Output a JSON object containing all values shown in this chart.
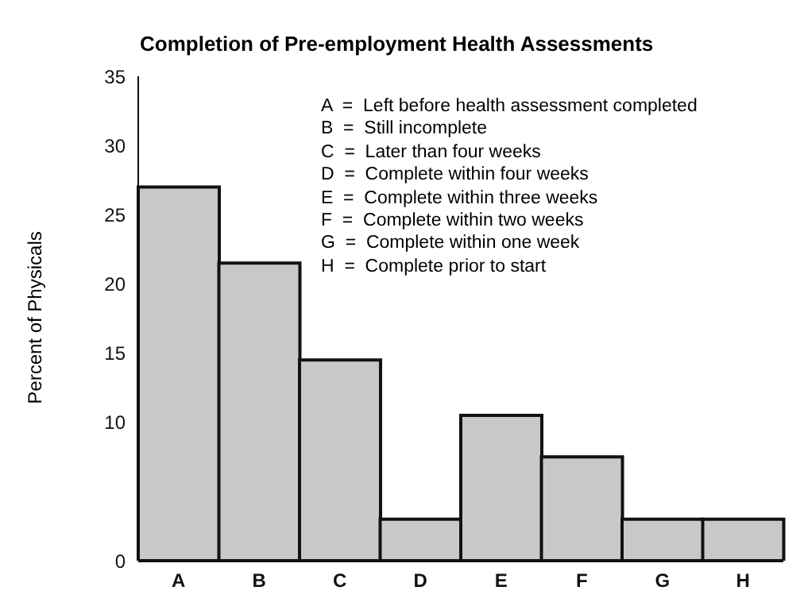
{
  "chart_data": {
    "type": "bar",
    "title": "Completion of Pre-employment Health Assessments",
    "ylabel": "Percent of Physicals",
    "categories": [
      "A",
      "B",
      "C",
      "D",
      "E",
      "F",
      "G",
      "H"
    ],
    "values": [
      27,
      21.5,
      14.5,
      3,
      10.5,
      7.5,
      3,
      3
    ],
    "color": "#c8c8c8",
    "ylim": [
      0,
      35
    ],
    "yticks": [
      0,
      10,
      15,
      20,
      25,
      30,
      35
    ],
    "grid": false,
    "annotations": [
      "A  =  Left before health assessment completed",
      "B  =  Still incomplete",
      "C  =  Later than four weeks",
      "D  =  Complete within four weeks",
      "E  =  Complete within three weeks",
      "F  =  Complete within two weeks",
      "G  =  Complete within one week",
      "H  =  Complete prior to start"
    ]
  }
}
